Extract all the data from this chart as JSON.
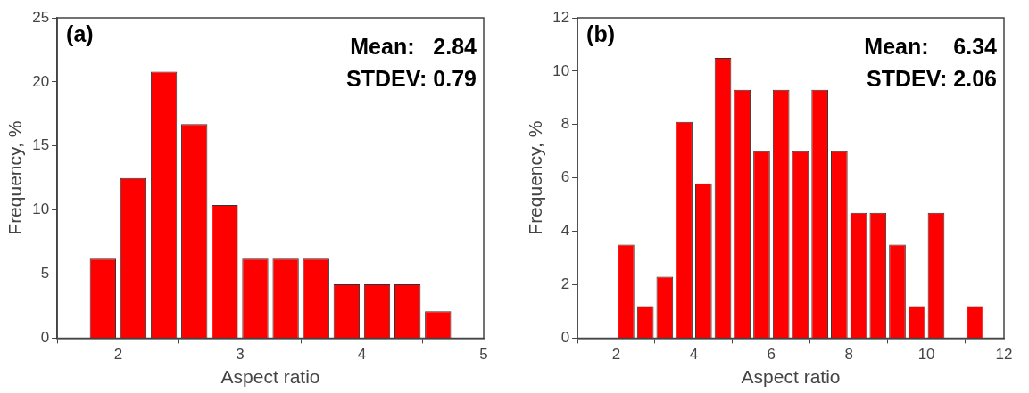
{
  "chart_data": [
    {
      "type": "histogram",
      "xlabel": "Aspect ratio",
      "ylabel": "Frequency, %",
      "color": "#ff0000",
      "bins": [
        1.75,
        2,
        2.25,
        2.5,
        2.75,
        3,
        3.25,
        3.5,
        3.75,
        4,
        4.25,
        4.5,
        4.75
      ],
      "values": [
        6.2,
        12.5,
        20.8,
        16.7,
        10.4,
        6.2,
        6.2,
        6.2,
        4.2,
        4.2,
        4.2,
        2.1
      ],
      "xlim": [
        1.5,
        5
      ],
      "xticks": [
        2,
        3,
        4,
        5
      ],
      "ylim": [
        0,
        25
      ],
      "yticks": [
        0,
        5,
        10,
        15,
        20,
        25
      ],
      "grid": false,
      "legend": false,
      "annotations": [
        "(a)",
        "Mean:   2.84",
        "STDEV: 0.79"
      ]
    },
    {
      "type": "histogram",
      "xlabel": "Aspect ratio",
      "ylabel": "Frequency, %",
      "color": "#ff0000",
      "bins": [
        2,
        2.5,
        3,
        3.5,
        4,
        4.5,
        5,
        5.5,
        6,
        6.5,
        7,
        7.5,
        8,
        8.5,
        9,
        9.5,
        10,
        10.5,
        11,
        11.5
      ],
      "values": [
        3.5,
        1.2,
        2.3,
        8.1,
        5.8,
        10.5,
        9.3,
        7.0,
        9.3,
        7.0,
        9.3,
        7.0,
        4.7,
        4.7,
        3.5,
        1.2,
        4.7,
        0,
        1.2
      ],
      "xlim": [
        1,
        12
      ],
      "xticks": [
        2,
        4,
        6,
        8,
        10,
        12
      ],
      "ylim": [
        0,
        12
      ],
      "yticks": [
        0,
        2,
        4,
        6,
        8,
        10,
        12
      ],
      "grid": false,
      "legend": false,
      "annotations": [
        "(b)",
        "Mean:    6.34",
        "STDEV: 2.06"
      ]
    }
  ]
}
